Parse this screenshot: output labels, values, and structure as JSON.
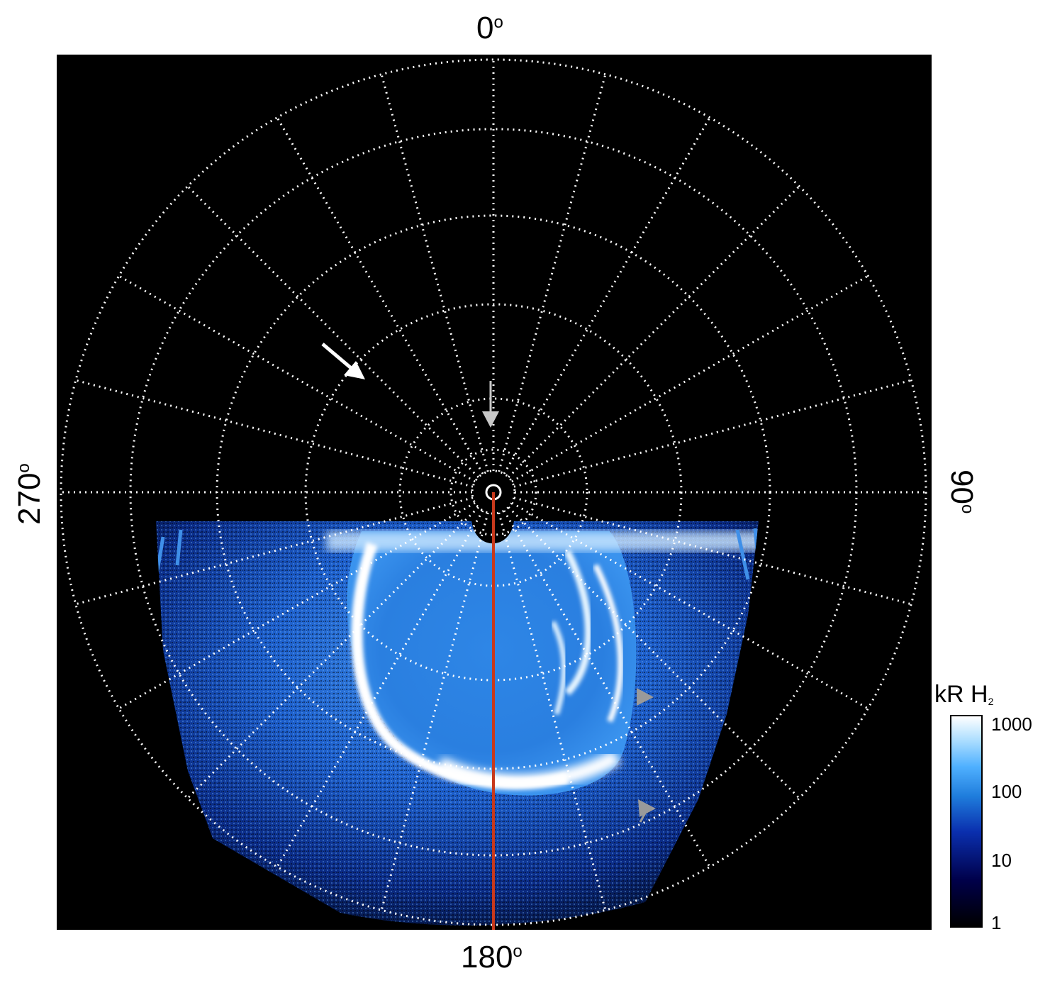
{
  "axis_labels": {
    "top": {
      "value": "0",
      "unit": "o"
    },
    "right": {
      "value": "90",
      "unit": "o"
    },
    "bottom": {
      "value": "180",
      "unit": "o"
    },
    "left": {
      "value": "270",
      "unit": "o"
    }
  },
  "colorbar": {
    "title_main": "kR H",
    "title_sub": "2",
    "ticks": [
      "1000",
      "100",
      "10",
      "1"
    ],
    "scale": "log",
    "colors": [
      "#000000",
      "#00004a",
      "#0a2fae",
      "#1f7ddc",
      "#4fb0ff",
      "#a8dcff",
      "#ffffff"
    ]
  },
  "image": {
    "background": "#000000",
    "grid_color": "#ffffff",
    "meridian_line_color": "#c8391c",
    "arrow_colors": [
      "#ffffff",
      "#c8c8c8",
      "#9a9a9a"
    ]
  }
}
